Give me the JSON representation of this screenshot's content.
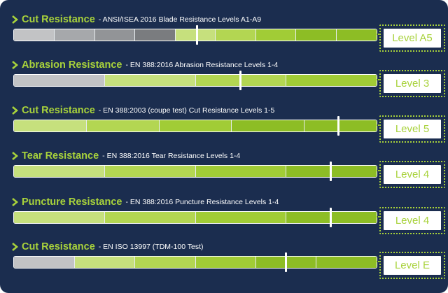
{
  "colors": {
    "background": "#1b2d4f",
    "accent": "#a8d23b",
    "inactive_greys": [
      "#c2c3c5",
      "#a6a8ab",
      "#929497",
      "#7a7c7f"
    ],
    "active_greens": [
      "#c6e07d",
      "#b3d652",
      "#a1cc36",
      "#8dbd25"
    ]
  },
  "icons": {
    "bullet": "chevron-right-icon"
  },
  "ratings": [
    {
      "title": "Cut Resistance",
      "description": "- ANSI/ISEA 2016 Blade Resistance Levels A1-A9",
      "level_label": "Level A5",
      "total_levels": 9,
      "achieved_level": 5,
      "marker_fraction": 0.505
    },
    {
      "title": "Abrasion Resistance",
      "description": "- EN 388:2016 Abrasion Resistance Levels 1-4",
      "level_label": "Level 3",
      "total_levels": 4,
      "achieved_level": 3,
      "marker_fraction": 0.625
    },
    {
      "title": "Cut Resistance",
      "description": "- EN 388:2003 (coupe test) Cut Resistance Levels 1-5",
      "level_label": "Level 5",
      "total_levels": 5,
      "achieved_level": 5,
      "marker_fraction": 0.895
    },
    {
      "title": "Tear Resistance",
      "description": "- EN 388:2016 Tear Resistance Levels 1-4",
      "level_label": "Level 4",
      "total_levels": 4,
      "achieved_level": 4,
      "marker_fraction": 0.875
    },
    {
      "title": "Puncture Resistance",
      "description": "- EN 388:2016 Puncture Resistance Levels 1-4",
      "level_label": "Level 4",
      "total_levels": 4,
      "achieved_level": 4,
      "marker_fraction": 0.875
    },
    {
      "title": "Cut Resistance",
      "description": "- EN ISO 13997 (TDM-100 Test)",
      "level_label": "Level E",
      "total_levels": 6,
      "achieved_level": 5,
      "marker_fraction": 0.75
    }
  ]
}
